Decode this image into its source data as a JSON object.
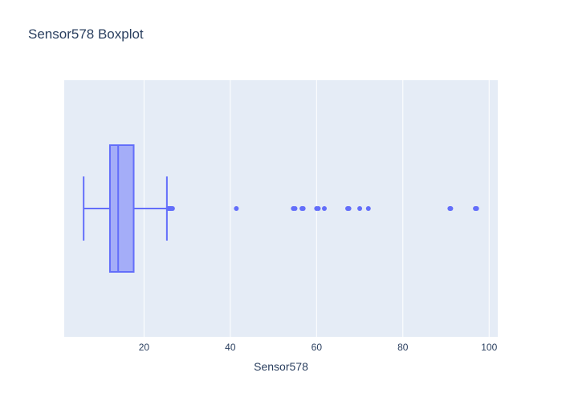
{
  "chart_data": {
    "type": "box",
    "title": "Sensor578 Boxplot",
    "xlabel": "Sensor578",
    "ylabel": "",
    "xlim": [
      1.5,
      102
    ],
    "xticks": [
      20,
      40,
      60,
      80,
      100
    ],
    "grid": true,
    "orientation": "horizontal",
    "series": [
      {
        "whisker_low": 6.0,
        "q1": 12.1,
        "median": 14.0,
        "q3": 17.6,
        "whisker_high": 25.3,
        "outliers": [
          25.6,
          25.9,
          26.1,
          26.3,
          26.6,
          41.4,
          54.6,
          55.0,
          56.6,
          56.9,
          60.0,
          60.4,
          61.8,
          67.2,
          67.5,
          70.0,
          72.0,
          90.9,
          91.1,
          96.8,
          97.1
        ]
      }
    ],
    "colors": {
      "box_line": "#636efa",
      "box_fill": "rgba(99,110,250,0.5)",
      "plot_bg": "#e5ecf6",
      "grid": "#ffffff",
      "text": "#2a3f5f"
    }
  }
}
